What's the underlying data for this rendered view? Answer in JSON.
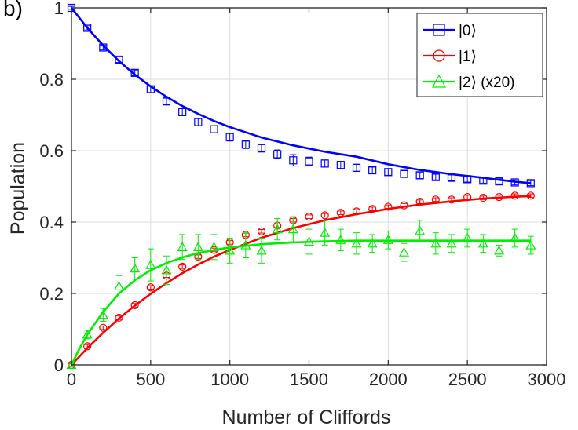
{
  "panel_label": "b)",
  "chart_data": {
    "type": "scatter",
    "xlabel": "Number of Cliffords",
    "ylabel": "Population",
    "xlim": [
      0,
      3000
    ],
    "ylim": [
      0,
      1
    ],
    "xticks": [
      0,
      500,
      1000,
      1500,
      2000,
      2500,
      3000
    ],
    "yticks": [
      0,
      0.2,
      0.4,
      0.6,
      0.8,
      1
    ],
    "xtick_labels": [
      "0",
      "500",
      "1000",
      "1500",
      "2000",
      "2500",
      "3000"
    ],
    "ytick_labels": [
      "0",
      "0.2",
      "0.4",
      "0.6",
      "0.8",
      "1"
    ],
    "grid": true,
    "legend_position": "top-right",
    "series": [
      {
        "name": "|0⟩",
        "color": "#0000ff",
        "marker": "square",
        "x": [
          0,
          100,
          200,
          300,
          400,
          500,
          600,
          700,
          800,
          900,
          1000,
          1100,
          1200,
          1300,
          1400,
          1500,
          1600,
          1700,
          1800,
          1900,
          2000,
          2100,
          2200,
          2300,
          2400,
          2500,
          2600,
          2700,
          2800,
          2900
        ],
        "y": [
          1.0,
          0.944,
          0.889,
          0.855,
          0.818,
          0.772,
          0.738,
          0.708,
          0.68,
          0.66,
          0.638,
          0.617,
          0.607,
          0.59,
          0.573,
          0.57,
          0.564,
          0.56,
          0.552,
          0.545,
          0.54,
          0.535,
          0.531,
          0.526,
          0.524,
          0.52,
          0.516,
          0.514,
          0.511,
          0.509
        ],
        "error": [
          0.004,
          0.006,
          0.007,
          0.008,
          0.008,
          0.009,
          0.009,
          0.01,
          0.01,
          0.01,
          0.011,
          0.011,
          0.011,
          0.012,
          0.016,
          0.012,
          0.01,
          0.01,
          0.01,
          0.009,
          0.009,
          0.009,
          0.009,
          0.008,
          0.008,
          0.008,
          0.007,
          0.007,
          0.007,
          0.007
        ],
        "fit": {
          "x": [
            0,
            100,
            200,
            300,
            400,
            500,
            600,
            700,
            800,
            900,
            1000,
            1200,
            1400,
            1600,
            1800,
            2000,
            2200,
            2400,
            2600,
            2800,
            2900
          ],
          "y": [
            1.0,
            0.944,
            0.895,
            0.851,
            0.813,
            0.78,
            0.751,
            0.725,
            0.703,
            0.683,
            0.666,
            0.637,
            0.615,
            0.597,
            0.583,
            0.562,
            0.546,
            0.534,
            0.524,
            0.513,
            0.509
          ]
        }
      },
      {
        "name": "|1⟩",
        "color": "#ff0000",
        "marker": "circle",
        "x": [
          0,
          100,
          200,
          300,
          400,
          500,
          600,
          700,
          800,
          900,
          1000,
          1100,
          1200,
          1300,
          1400,
          1500,
          1600,
          1700,
          1800,
          1900,
          2000,
          2100,
          2200,
          2300,
          2400,
          2500,
          2600,
          2700,
          2800,
          2900
        ],
        "y": [
          0.0,
          0.052,
          0.104,
          0.132,
          0.167,
          0.217,
          0.25,
          0.275,
          0.303,
          0.322,
          0.343,
          0.364,
          0.374,
          0.39,
          0.405,
          0.415,
          0.419,
          0.426,
          0.43,
          0.437,
          0.443,
          0.447,
          0.457,
          0.463,
          0.463,
          0.47,
          0.468,
          0.47,
          0.474,
          0.474
        ],
        "error": [
          0.003,
          0.005,
          0.005,
          0.005,
          0.005,
          0.005,
          0.005,
          0.005,
          0.005,
          0.005,
          0.005,
          0.005,
          0.005,
          0.005,
          0.005,
          0.005,
          0.005,
          0.005,
          0.005,
          0.005,
          0.005,
          0.005,
          0.005,
          0.005,
          0.005,
          0.005,
          0.005,
          0.005,
          0.005,
          0.005
        ],
        "fit": {
          "x": [
            0,
            100,
            200,
            300,
            400,
            500,
            600,
            700,
            800,
            900,
            1000,
            1200,
            1400,
            1600,
            1800,
            2000,
            2200,
            2400,
            2600,
            2800,
            2900
          ],
          "y": [
            0.0,
            0.047,
            0.09,
            0.13,
            0.166,
            0.199,
            0.229,
            0.257,
            0.281,
            0.303,
            0.322,
            0.356,
            0.383,
            0.405,
            0.422,
            0.437,
            0.449,
            0.458,
            0.466,
            0.471,
            0.473
          ]
        }
      },
      {
        "name": "|2⟩ (x20)",
        "color": "#00ee00",
        "marker": "triangle",
        "x": [
          0,
          100,
          200,
          300,
          400,
          500,
          600,
          700,
          800,
          900,
          1000,
          1100,
          1200,
          1300,
          1400,
          1500,
          1600,
          1700,
          1800,
          1900,
          2000,
          2100,
          2200,
          2300,
          2400,
          2500,
          2600,
          2700,
          2800,
          2900
        ],
        "y": [
          0.0,
          0.085,
          0.14,
          0.22,
          0.27,
          0.28,
          0.265,
          0.33,
          0.33,
          0.33,
          0.32,
          0.335,
          0.32,
          0.38,
          0.38,
          0.345,
          0.37,
          0.35,
          0.34,
          0.34,
          0.35,
          0.315,
          0.375,
          0.34,
          0.34,
          0.355,
          0.34,
          0.32,
          0.355,
          0.335
        ],
        "error": [
          0.005,
          0.012,
          0.018,
          0.03,
          0.03,
          0.045,
          0.04,
          0.035,
          0.035,
          0.035,
          0.035,
          0.035,
          0.035,
          0.03,
          0.035,
          0.035,
          0.035,
          0.03,
          0.03,
          0.025,
          0.025,
          0.025,
          0.03,
          0.03,
          0.025,
          0.025,
          0.025,
          0.015,
          0.025,
          0.025
        ],
        "fit": {
          "x": [
            0,
            50,
            100,
            150,
            200,
            300,
            400,
            500,
            600,
            700,
            800,
            900,
            1000,
            1200,
            1400,
            1600,
            1800,
            2000,
            2400,
            2900
          ],
          "y": [
            0.0,
            0.045,
            0.085,
            0.117,
            0.148,
            0.2,
            0.237,
            0.265,
            0.285,
            0.301,
            0.313,
            0.322,
            0.329,
            0.338,
            0.343,
            0.346,
            0.348,
            0.348,
            0.348,
            0.348
          ]
        }
      }
    ]
  }
}
